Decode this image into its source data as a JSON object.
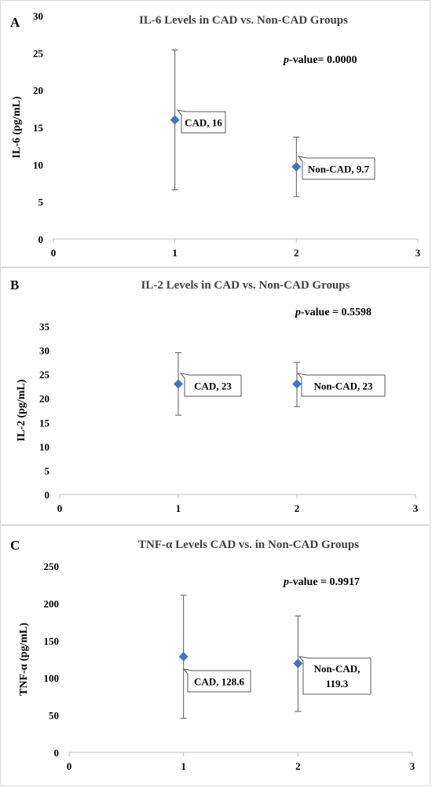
{
  "chart_data": [
    {
      "panel_letter": "A",
      "type": "scatter",
      "title": "IL-6 Levels in CAD vs. Non-CAD Groups",
      "ylabel": "IL-6 (pg/mL)",
      "xlabel": "",
      "xlim": [
        0,
        3
      ],
      "ylim": [
        0,
        30
      ],
      "x_ticks": [
        "0",
        "1",
        "2",
        "3"
      ],
      "y_ticks": [
        "0",
        "5",
        "10",
        "15",
        "20",
        "25",
        "30"
      ],
      "grid": false,
      "marker_color": "#4472C4",
      "annotation": {
        "prefix": "p",
        "text": "-value= 0.0000"
      },
      "points": [
        {
          "x": 1,
          "y": 16,
          "err_low": 6.6,
          "err_high": 25.4,
          "label_lines": [
            "CAD, 16"
          ]
        },
        {
          "x": 2,
          "y": 9.7,
          "err_low": 5.7,
          "err_high": 13.7,
          "label_lines": [
            "Non-CAD, 9.7"
          ]
        }
      ]
    },
    {
      "panel_letter": "B",
      "type": "scatter",
      "title": "IL-2 Levels in CAD vs. Non-CAD Groups",
      "ylabel": "IL-2 (pg/mL)",
      "xlabel": "",
      "xlim": [
        0,
        3
      ],
      "ylim": [
        0,
        35
      ],
      "x_ticks": [
        "0",
        "1",
        "2",
        "3"
      ],
      "y_ticks": [
        "0",
        "5",
        "10",
        "15",
        "20",
        "25",
        "30",
        "35"
      ],
      "grid": false,
      "marker_color": "#4472C4",
      "annotation": {
        "prefix": "p",
        "text": "-value = 0.5598"
      },
      "points": [
        {
          "x": 1,
          "y": 23,
          "err_low": 16.5,
          "err_high": 29.5,
          "label_lines": [
            "CAD, 23"
          ]
        },
        {
          "x": 2,
          "y": 23,
          "err_low": 18.3,
          "err_high": 27.5,
          "label_lines": [
            "Non-CAD, 23"
          ]
        }
      ]
    },
    {
      "panel_letter": "C",
      "type": "scatter",
      "title": "TNF-α Levels CAD vs. in Non-CAD Groups",
      "ylabel": "TNF-α (pg/mL)",
      "xlabel": "",
      "xlim": [
        0,
        3
      ],
      "ylim": [
        0,
        250
      ],
      "x_ticks": [
        "0",
        "1",
        "2",
        "3"
      ],
      "y_ticks": [
        "0",
        "50",
        "100",
        "150",
        "200",
        "250"
      ],
      "grid": false,
      "marker_color": "#4472C4",
      "annotation": {
        "prefix": "p",
        "text": "-value = 0.9917"
      },
      "points": [
        {
          "x": 1,
          "y": 128.6,
          "err_low": 46,
          "err_high": 211,
          "label_lines": [
            "CAD, 128.6"
          ]
        },
        {
          "x": 2,
          "y": 119.3,
          "err_low": 55,
          "err_high": 183,
          "label_lines": [
            "Non-CAD,",
            "119.3"
          ]
        }
      ]
    }
  ]
}
